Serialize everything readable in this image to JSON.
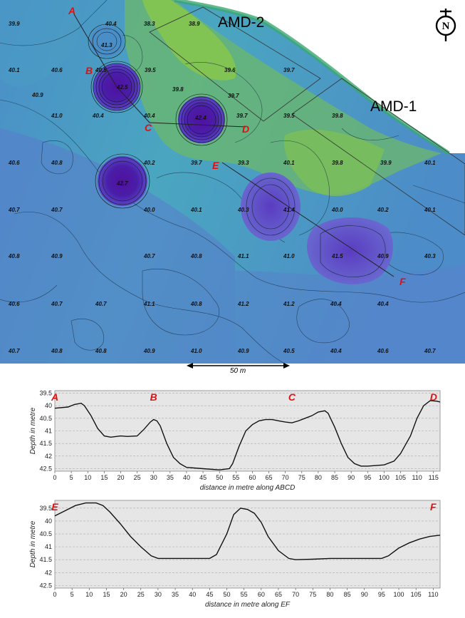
{
  "map": {
    "site_labels": [
      "AMD-2",
      "AMD-1"
    ],
    "section_points": [
      "A",
      "B",
      "C",
      "D",
      "E",
      "F"
    ],
    "scale_label": "50 m",
    "north_icon": "north-arrow-icon",
    "depth_labels": [
      "39.9",
      "40.4",
      "38.3",
      "38.9",
      "41.3",
      "40.1",
      "40.6",
      "40.5",
      "39.5",
      "39.6",
      "39.7",
      "42.5",
      "39.8",
      "39.7",
      "40.9",
      "41.0",
      "40.4",
      "40.4",
      "42.4",
      "39.7",
      "39.5",
      "39.8",
      "40.6",
      "40.8",
      "40.2",
      "39.7",
      "39.3",
      "40.1",
      "39.8",
      "39.9",
      "40.1",
      "42.7",
      "40.7",
      "40.7",
      "40.0",
      "40.1",
      "40.3",
      "41.4",
      "40.0",
      "40.2",
      "40.1",
      "40.8",
      "40.9",
      "40.7",
      "40.8",
      "41.1",
      "41.0",
      "41.5",
      "40.9",
      "40.3",
      "40.6",
      "40.7",
      "40.7",
      "41.1",
      "40.8",
      "41.2",
      "41.2",
      "40.4",
      "40.4",
      "40.7",
      "40.8",
      "40.8",
      "40.9",
      "41.0",
      "40.9",
      "40.5",
      "40.4",
      "40.6",
      "40.7"
    ]
  },
  "chart_data": [
    {
      "type": "line",
      "xlabel": "distance in metre along ABCD",
      "ylabel": "Depth in metre",
      "xlim": [
        0,
        117
      ],
      "ylim": [
        39.4,
        42.6
      ],
      "y_inverted": true,
      "grid": true,
      "xticks": [
        0,
        5,
        10,
        15,
        20,
        25,
        30,
        35,
        40,
        45,
        50,
        55,
        60,
        65,
        70,
        75,
        80,
        85,
        90,
        95,
        100,
        105,
        110,
        115
      ],
      "yticks": [
        "39.5",
        "40",
        "40.5",
        "41",
        "41.5",
        "42",
        "42.5"
      ],
      "point_labels": [
        {
          "label": "A",
          "x": 0
        },
        {
          "label": "B",
          "x": 30
        },
        {
          "label": "C",
          "x": 72
        },
        {
          "label": "D",
          "x": 115
        }
      ],
      "series": [
        {
          "x": [
            0,
            4,
            6,
            8,
            9,
            11,
            13,
            15,
            17,
            20,
            22,
            25,
            27,
            29,
            30,
            31,
            32,
            34,
            36,
            38,
            40,
            45,
            50,
            53,
            54,
            56,
            58,
            60,
            62,
            64,
            66,
            68,
            70,
            72,
            74,
            76,
            78,
            80,
            82,
            83,
            85,
            87,
            89,
            91,
            93,
            95,
            100,
            103,
            105,
            108,
            110,
            112,
            114,
            116,
            117
          ],
          "y": [
            40.1,
            40.05,
            39.95,
            39.9,
            40.0,
            40.4,
            40.9,
            41.2,
            41.25,
            41.2,
            41.22,
            41.2,
            40.95,
            40.65,
            40.55,
            40.6,
            40.8,
            41.5,
            42.05,
            42.3,
            42.45,
            42.5,
            42.55,
            42.5,
            42.3,
            41.6,
            41.0,
            40.75,
            40.6,
            40.55,
            40.55,
            40.6,
            40.65,
            40.68,
            40.6,
            40.5,
            40.4,
            40.25,
            40.2,
            40.3,
            40.85,
            41.5,
            42.05,
            42.3,
            42.4,
            42.4,
            42.35,
            42.2,
            41.9,
            41.2,
            40.5,
            40.0,
            39.8,
            39.82,
            39.85
          ]
        }
      ]
    },
    {
      "type": "line",
      "xlabel": "distance in metre along EF",
      "ylabel": "Depth in metre",
      "xlim": [
        0,
        112
      ],
      "ylim": [
        39.2,
        42.6
      ],
      "y_inverted": true,
      "grid": true,
      "xticks": [
        0,
        5,
        10,
        15,
        20,
        25,
        30,
        35,
        40,
        45,
        50,
        55,
        60,
        65,
        70,
        75,
        80,
        85,
        90,
        95,
        100,
        105,
        110
      ],
      "yticks": [
        "39.5",
        "40",
        "40.5",
        "41",
        "41.5",
        "42",
        "42.5"
      ],
      "point_labels": [
        {
          "label": "E",
          "x": 0
        },
        {
          "label": "F",
          "x": 110
        }
      ],
      "series": [
        {
          "x": [
            0,
            3,
            6,
            9,
            12,
            14,
            16,
            19,
            22,
            25,
            28,
            30,
            35,
            40,
            45,
            47,
            50,
            52,
            54,
            56,
            58,
            60,
            62,
            65,
            68,
            70,
            75,
            80,
            85,
            90,
            95,
            97,
            100,
            103,
            106,
            109,
            112
          ],
          "y": [
            39.8,
            39.6,
            39.4,
            39.3,
            39.3,
            39.4,
            39.65,
            40.1,
            40.6,
            41.0,
            41.35,
            41.45,
            41.45,
            41.45,
            41.45,
            41.3,
            40.5,
            39.75,
            39.5,
            39.55,
            39.7,
            40.05,
            40.6,
            41.15,
            41.45,
            41.5,
            41.48,
            41.45,
            41.45,
            41.45,
            41.45,
            41.35,
            41.05,
            40.85,
            40.7,
            40.6,
            40.55
          ]
        }
      ]
    }
  ]
}
